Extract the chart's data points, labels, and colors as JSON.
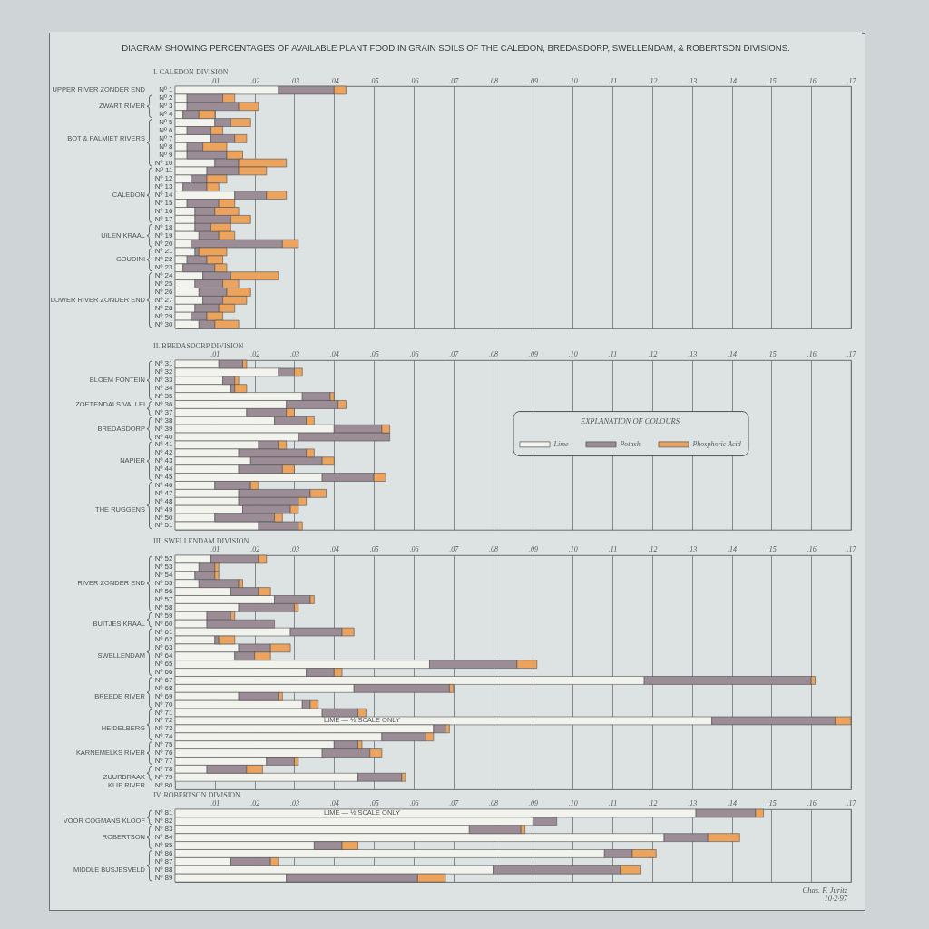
{
  "chart_data": [
    {
      "type": "bar",
      "orientation": "horizontal",
      "stacked": true,
      "title": "DIAGRAM SHOWING PERCENTAGES OF AVAILABLE PLANT FOOD IN GRAIN SOILS OF THE CALEDON, BREDASDORP, SWELLENDAM, & ROBERTSON DIVISIONS.",
      "subtitle": "I. CALEDON DIVISION",
      "categories": [
        "Nº 1",
        "Nº 2",
        "Nº 3",
        "Nº 4",
        "Nº 5",
        "Nº 6",
        "Nº 7",
        "Nº 8",
        "Nº 9",
        "Nº 10",
        "Nº 11",
        "Nº 12",
        "Nº 13",
        "Nº 14",
        "Nº 15",
        "Nº 16",
        "Nº 17",
        "Nº 18",
        "Nº 19",
        "Nº 20",
        "Nº 21",
        "Nº 22",
        "Nº 23",
        "Nº 24",
        "Nº 25",
        "Nº 26",
        "Nº 27",
        "Nº 28",
        "Nº 29",
        "Nº 30"
      ],
      "series": [
        {
          "color": "#f3f3ee",
          "values": [
            0.026,
            0.003,
            0.003,
            0.002,
            0.01,
            0.003,
            0.009,
            0.003,
            0.003,
            0.01,
            0.008,
            0.004,
            0.002,
            0.015,
            0.003,
            0.005,
            0.005,
            0.005,
            0.006,
            0.004,
            0.005,
            0.003,
            0.002,
            0.007,
            0.005,
            0.006,
            0.007,
            0.005,
            0.004,
            0.006
          ]
        },
        {
          "color": "#9b8c95",
          "values": [
            0.014,
            0.009,
            0.013,
            0.004,
            0.004,
            0.006,
            0.006,
            0.004,
            0.01,
            0.006,
            0.008,
            0.004,
            0.006,
            0.008,
            0.008,
            0.005,
            0.009,
            0.004,
            0.005,
            0.023,
            0.001,
            0.005,
            0.008,
            0.007,
            0.007,
            0.007,
            0.005,
            0.006,
            0.004,
            0.004
          ]
        },
        {
          "color": "#eca35e",
          "values": [
            0.003,
            0.003,
            0.005,
            0.004,
            0.005,
            0.003,
            0.003,
            0.006,
            0.004,
            0.012,
            0.007,
            0.005,
            0.003,
            0.005,
            0.004,
            0.006,
            0.005,
            0.005,
            0.004,
            0.004,
            0.007,
            0.004,
            0.003,
            0.012,
            0.004,
            0.006,
            0.006,
            0.004,
            0.004,
            0.006
          ]
        }
      ],
      "xlim": [
        0,
        0.17
      ],
      "xticks": [
        {
          "value": 0.01,
          "label": ".01"
        },
        {
          "value": 0.02,
          "label": ".02"
        },
        {
          "value": 0.03,
          "label": ".03"
        },
        {
          "value": 0.04,
          "label": ".04"
        },
        {
          "value": 0.05,
          "label": ".05"
        },
        {
          "value": 0.06,
          "label": ".06"
        },
        {
          "value": 0.07,
          "label": ".07"
        },
        {
          "value": 0.08,
          "label": ".08"
        },
        {
          "value": 0.09,
          "label": ".09"
        },
        {
          "value": 0.1,
          "label": ".10"
        },
        {
          "value": 0.11,
          "label": ".11"
        },
        {
          "value": 0.12,
          "label": ".12"
        },
        {
          "value": 0.13,
          "label": ".13"
        },
        {
          "value": 0.14,
          "label": ".14"
        },
        {
          "value": 0.15,
          "label": ".15"
        },
        {
          "value": 0.16,
          "label": ".16"
        },
        {
          "value": 0.17,
          "label": ".17"
        }
      ],
      "grid": "x",
      "annotations": [
        "UPPER RIVER ZONDER END",
        "ZWART RIVER",
        "BOT & PALMIET RIVERS",
        "CALEDON",
        "UILEN KRAAL",
        "GOUDINI",
        "LOWER RIVER ZONDER END"
      ]
    },
    {
      "type": "bar",
      "orientation": "horizontal",
      "stacked": true,
      "title": "II. BREDASDORP DIVISION",
      "categories": [
        "Nº 31",
        "Nº 32",
        "Nº 33",
        "Nº 34",
        "Nº 35",
        "Nº 36",
        "Nº 37",
        "Nº 38",
        "Nº 39",
        "Nº 40",
        "Nº 41",
        "Nº 42",
        "Nº 43",
        "Nº 44",
        "Nº 45",
        "Nº 46",
        "Nº 47",
        "Nº 48",
        "Nº 49",
        "Nº 50",
        "Nº 51"
      ],
      "series": [
        {
          "name": "Lime",
          "color": "#f3f3ee",
          "values": [
            0.011,
            0.026,
            0.012,
            0.014,
            0.032,
            0.028,
            0.018,
            0.025,
            0.04,
            0.031,
            0.021,
            0.016,
            0.019,
            0.016,
            0.037,
            0.01,
            0.016,
            0.016,
            0.017,
            0.01,
            0.021
          ]
        },
        {
          "name": "Potash",
          "color": "#9b8c95",
          "values": [
            0.006,
            0.004,
            0.003,
            0.001,
            0.007,
            0.013,
            0.01,
            0.008,
            0.012,
            0.023,
            0.005,
            0.017,
            0.018,
            0.011,
            0.013,
            0.009,
            0.018,
            0.015,
            0.012,
            0.015,
            0.01
          ]
        },
        {
          "name": "Phosphoric Acid",
          "color": "#eca35e",
          "values": [
            0.001,
            0.002,
            0.001,
            0.003,
            0.001,
            0.002,
            0.002,
            0.002,
            0.002,
            null,
            0.002,
            0.002,
            0.003,
            0.003,
            0.003,
            0.002,
            0.004,
            0.002,
            0.002,
            0.002,
            0.001
          ]
        }
      ],
      "xlim": [
        0,
        0.17
      ],
      "xticks": [
        {
          "value": 0.01,
          "label": ".01"
        },
        {
          "value": 0.02,
          "label": ".02"
        },
        {
          "value": 0.03,
          "label": ".03"
        },
        {
          "value": 0.04,
          "label": ".04"
        },
        {
          "value": 0.05,
          "label": ".05"
        },
        {
          "value": 0.06,
          "label": ".06"
        },
        {
          "value": 0.07,
          "label": ".07"
        },
        {
          "value": 0.08,
          "label": ".08"
        },
        {
          "value": 0.09,
          "label": ".09"
        },
        {
          "value": 0.1,
          "label": ".10"
        },
        {
          "value": 0.11,
          "label": ".11"
        },
        {
          "value": 0.12,
          "label": ".12"
        },
        {
          "value": 0.13,
          "label": ".13"
        },
        {
          "value": 0.14,
          "label": ".14"
        },
        {
          "value": 0.15,
          "label": ".15"
        },
        {
          "value": 0.16,
          "label": ".16"
        },
        {
          "value": 0.17,
          "label": ".17"
        }
      ],
      "grid": "x",
      "legend": "right",
      "legend_title": "EXPLANATION OF COLOURS",
      "annotations": [
        "BLOEM FONTEIN",
        "ZOETENDALS VALLEI",
        "BREDASDORP",
        "NAPIER",
        "THE RUGGENS"
      ]
    },
    {
      "type": "bar",
      "orientation": "horizontal",
      "stacked": true,
      "title": "III. SWELLENDAM DIVISION",
      "categories": [
        "Nº 52",
        "Nº 53",
        "Nº 54",
        "Nº 55",
        "Nº 56",
        "Nº 57",
        "Nº 58",
        "Nº 59",
        "Nº 60",
        "Nº 61",
        "Nº 62",
        "Nº 63",
        "Nº 64",
        "Nº 65",
        "Nº 66",
        "Nº 67",
        "Nº 68",
        "Nº 69",
        "Nº 70",
        "Nº 71",
        "Nº 72",
        "Nº 73",
        "Nº 74",
        "Nº 75",
        "Nº 76",
        "Nº 77",
        "Nº 78",
        "Nº 79",
        "Nº 80"
      ],
      "series": [
        {
          "color": "#f3f3ee",
          "values": [
            0.009,
            0.006,
            0.005,
            0.006,
            0.014,
            0.025,
            0.016,
            0.008,
            0.008,
            0.029,
            0.01,
            0.016,
            0.015,
            0.064,
            0.033,
            0.118,
            0.045,
            0.016,
            0.032,
            0.037,
            0.135,
            0.065,
            0.052,
            0.04,
            0.037,
            0.023,
            0.008,
            0.046,
            null
          ]
        },
        {
          "color": "#9b8c95",
          "values": [
            0.012,
            0.004,
            0.005,
            0.01,
            0.007,
            0.009,
            0.014,
            0.006,
            0.017,
            0.013,
            0.001,
            0.008,
            0.005,
            0.022,
            0.007,
            0.042,
            0.024,
            0.01,
            0.002,
            0.009,
            0.031,
            0.003,
            0.011,
            0.006,
            0.012,
            0.007,
            0.01,
            0.011,
            null
          ]
        },
        {
          "color": "#eca35e",
          "values": [
            0.002,
            0.001,
            0.001,
            0.001,
            0.003,
            0.001,
            0.001,
            0.001,
            null,
            0.003,
            0.004,
            0.005,
            0.004,
            0.005,
            0.002,
            0.001,
            0.001,
            0.001,
            0.002,
            0.002,
            0.004,
            0.001,
            0.002,
            0.001,
            0.003,
            0.001,
            0.004,
            0.001,
            null
          ]
        }
      ],
      "xlim": [
        0,
        0.17
      ],
      "xticks": [
        {
          "value": 0.01,
          "label": ".01"
        },
        {
          "value": 0.02,
          "label": ".02"
        },
        {
          "value": 0.03,
          "label": ".03"
        },
        {
          "value": 0.04,
          "label": ".04"
        },
        {
          "value": 0.05,
          "label": ".05"
        },
        {
          "value": 0.06,
          "label": ".06"
        },
        {
          "value": 0.07,
          "label": ".07"
        },
        {
          "value": 0.08,
          "label": ".08"
        },
        {
          "value": 0.09,
          "label": ".09"
        },
        {
          "value": 0.1,
          "label": ".10"
        },
        {
          "value": 0.11,
          "label": ".11"
        },
        {
          "value": 0.12,
          "label": ".12"
        },
        {
          "value": 0.13,
          "label": ".13"
        },
        {
          "value": 0.14,
          "label": ".14"
        },
        {
          "value": 0.15,
          "label": ".15"
        },
        {
          "value": 0.16,
          "label": ".16"
        },
        {
          "value": 0.17,
          "label": ".17"
        }
      ],
      "grid": "x",
      "annotations": [
        "RIVER ZONDER END",
        "BUITJES KRAAL",
        "SWELLENDAM",
        "BREEDE RIVER",
        "HEIDELBERG",
        "KARNEMELKS RIVER",
        "ZUURBRAAK",
        "KLIP RIVER",
        {
          "text": "LIME — ½ SCALE ONLY",
          "x": 0.047,
          "y": "Nº 72"
        }
      ]
    },
    {
      "type": "bar",
      "orientation": "horizontal",
      "stacked": true,
      "title": "IV. ROBERTSON DIVISION.",
      "categories": [
        "Nº 81",
        "Nº 82",
        "Nº 83",
        "Nº 84",
        "Nº 85",
        "Nº 86",
        "Nº 87",
        "Nº 88",
        "Nº 89"
      ],
      "series": [
        {
          "color": "#f3f3ee",
          "values": [
            0.131,
            0.09,
            0.074,
            0.123,
            0.035,
            0.108,
            0.014,
            0.08,
            0.028
          ]
        },
        {
          "color": "#9b8c95",
          "values": [
            0.015,
            0.006,
            0.013,
            0.011,
            0.007,
            0.007,
            0.01,
            0.032,
            0.033
          ]
        },
        {
          "color": "#eca35e",
          "values": [
            0.002,
            null,
            0.001,
            0.008,
            0.004,
            0.006,
            0.002,
            0.005,
            0.007
          ]
        }
      ],
      "xlim": [
        0,
        0.17
      ],
      "xticks": [
        {
          "value": 0.01,
          "label": ".01"
        },
        {
          "value": 0.02,
          "label": ".02"
        },
        {
          "value": 0.03,
          "label": ".03"
        },
        {
          "value": 0.04,
          "label": ".04"
        },
        {
          "value": 0.05,
          "label": ".05"
        },
        {
          "value": 0.06,
          "label": ".06"
        },
        {
          "value": 0.07,
          "label": ".07"
        },
        {
          "value": 0.08,
          "label": ".08"
        },
        {
          "value": 0.09,
          "label": ".09"
        },
        {
          "value": 0.1,
          "label": ".10"
        },
        {
          "value": 0.11,
          "label": ".11"
        },
        {
          "value": 0.12,
          "label": ".12"
        },
        {
          "value": 0.13,
          "label": ".13"
        },
        {
          "value": 0.14,
          "label": ".14"
        },
        {
          "value": 0.15,
          "label": ".15"
        },
        {
          "value": 0.16,
          "label": ".16"
        },
        {
          "value": 0.17,
          "label": ".17"
        }
      ],
      "grid": "x",
      "annotations": [
        "VOOR COGMANS KLOOF",
        "ROBERTSON",
        "MIDDLE BUSJESVELD",
        "Chas. F. Juritz",
        "10·2·97",
        {
          "text": "LIME — ½ SCALE ONLY",
          "x": 0.047,
          "y": "Nº 81"
        }
      ]
    }
  ]
}
